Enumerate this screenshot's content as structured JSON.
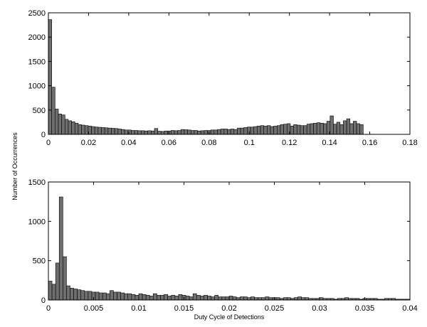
{
  "figure": {
    "shared_ylabel": "Number of Occurrences"
  },
  "chart_data": [
    {
      "type": "bar",
      "title": "",
      "xlabel": "",
      "ylabel": "Number of Occurrences",
      "xlim": [
        0,
        0.18
      ],
      "ylim": [
        0,
        2500
      ],
      "xticks": [
        0,
        0.02,
        0.04,
        0.06,
        0.08,
        0.1,
        0.12,
        0.14,
        0.16,
        0.18
      ],
      "xtick_labels": [
        "0",
        "0.02",
        "0.04",
        "0.06",
        "0.08",
        "0.1",
        "0.12",
        "0.14",
        "0.16",
        "0.18"
      ],
      "yticks": [
        0,
        500,
        1000,
        1500,
        2000,
        2500
      ],
      "ytick_labels": [
        "0",
        "500",
        "1000",
        "1500",
        "2000",
        "2500"
      ],
      "grid": false,
      "bin_width": 0.00165,
      "bin_start": 0,
      "bar_color": "#6e6e6e",
      "values": [
        2360,
        970,
        520,
        420,
        400,
        310,
        280,
        260,
        230,
        200,
        190,
        180,
        170,
        160,
        150,
        145,
        140,
        135,
        130,
        125,
        120,
        110,
        100,
        90,
        90,
        80,
        80,
        75,
        75,
        70,
        75,
        70,
        120,
        65,
        60,
        70,
        70,
        80,
        75,
        80,
        100,
        95,
        90,
        80,
        80,
        70,
        75,
        80,
        80,
        90,
        90,
        100,
        110,
        110,
        100,
        110,
        100,
        130,
        130,
        140,
        150,
        150,
        160,
        170,
        180,
        170,
        180,
        160,
        170,
        180,
        200,
        210,
        220,
        170,
        200,
        190,
        180,
        180,
        210,
        220,
        230,
        240,
        230,
        220,
        270,
        380,
        210,
        250,
        200,
        280,
        320,
        220,
        270,
        220,
        200
      ]
    },
    {
      "type": "bar",
      "title": "",
      "xlabel": "Duty Cycle of Detections",
      "ylabel": "Number of Occurrences",
      "xlim": [
        0,
        0.04
      ],
      "ylim": [
        0,
        1500
      ],
      "xticks": [
        0,
        0.005,
        0.01,
        0.015,
        0.02,
        0.025,
        0.03,
        0.035,
        0.04
      ],
      "xtick_labels": [
        "0",
        "0.005",
        "0.01",
        "0.015",
        "0.02",
        "0.025",
        "0.03",
        "0.035",
        "0.04"
      ],
      "yticks": [
        0,
        500,
        1000,
        1500
      ],
      "ytick_labels": [
        "0",
        "500",
        "1000",
        "1500"
      ],
      "grid": false,
      "bin_width": 0.0004,
      "bin_start": 0,
      "bar_color": "#6e6e6e",
      "values": [
        240,
        200,
        470,
        1310,
        550,
        180,
        150,
        140,
        130,
        120,
        110,
        110,
        100,
        100,
        90,
        90,
        80,
        120,
        100,
        100,
        90,
        80,
        80,
        70,
        60,
        80,
        70,
        60,
        50,
        80,
        60,
        60,
        70,
        50,
        60,
        50,
        70,
        60,
        50,
        40,
        80,
        60,
        50,
        60,
        50,
        40,
        60,
        40,
        40,
        40,
        50,
        40,
        30,
        40,
        40,
        30,
        40,
        30,
        30,
        30,
        40,
        30,
        30,
        30,
        20,
        30,
        30,
        20,
        30,
        40,
        30,
        30,
        20,
        20,
        20,
        30,
        20,
        20,
        20,
        10,
        20,
        20,
        30,
        20,
        20,
        20,
        10,
        20,
        20,
        20,
        20,
        10,
        10,
        20,
        20,
        20,
        10,
        10,
        10,
        10
      ]
    }
  ]
}
